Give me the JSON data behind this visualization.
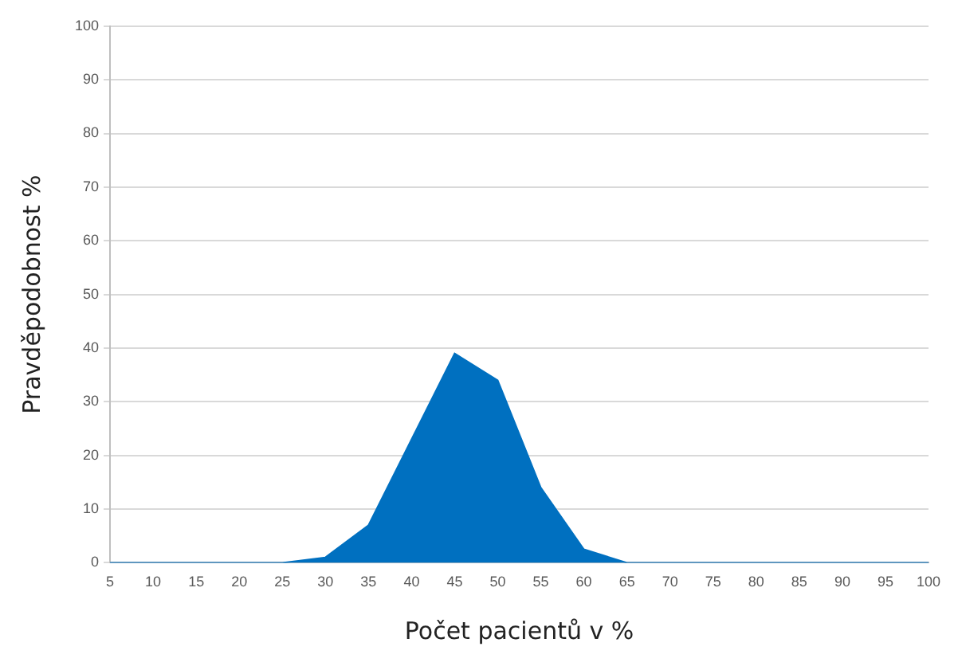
{
  "chart_data": {
    "type": "area",
    "xlabel": "Počet pacientů v %",
    "ylabel": "Pravděpodobnost %",
    "categories": [
      "5",
      "10",
      "15",
      "20",
      "25",
      "30",
      "35",
      "40",
      "45",
      "50",
      "55",
      "60",
      "65",
      "70",
      "75",
      "80",
      "85",
      "90",
      "95",
      "100"
    ],
    "series": [
      {
        "color": "#0070c0",
        "values": [
          0,
          0,
          0,
          0,
          0,
          1,
          7,
          23,
          39,
          34,
          14,
          2.5,
          0,
          0,
          0,
          0,
          0,
          0,
          0,
          0
        ]
      }
    ],
    "ylim": [
      0,
      100
    ],
    "yticks": [
      0,
      10,
      20,
      30,
      40,
      50,
      60,
      70,
      80,
      90,
      100
    ],
    "grid": "y",
    "legend": false
  }
}
